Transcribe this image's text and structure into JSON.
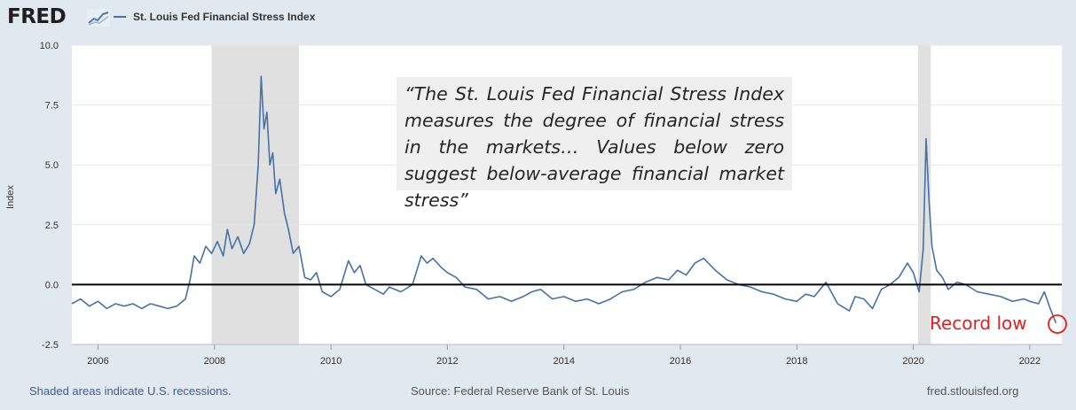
{
  "header": {
    "logo_text": "FRED",
    "legend_label": "St. Louis Fed Financial Stress Index"
  },
  "colors": {
    "series": "#4572a7",
    "recession": "#e0e0e0",
    "annotation": "#e32020"
  },
  "annotation": {
    "quote": "“The St. Louis Fed Financial Stress Index measures the degree of financial stress in the markets… Values below zero suggest below-average financial market stress”",
    "record_label": "Record low"
  },
  "footer": {
    "left": "Shaded areas indicate U.S. recessions.",
    "center": "Source: Federal Reserve Bank of St. Louis",
    "right": "fred.stlouisfed.org"
  },
  "chart_data": {
    "type": "line",
    "ylabel": "Index",
    "ylim": [
      -2.5,
      10
    ],
    "xlim": [
      2005.55,
      2022.55
    ],
    "yticks": [
      "10.0",
      "7.5",
      "5.0",
      "2.5",
      "0.0",
      "-2.5"
    ],
    "xticks": [
      "2006",
      "2008",
      "2010",
      "2012",
      "2014",
      "2016",
      "2018",
      "2020",
      "2022"
    ],
    "recessions": [
      [
        2007.95,
        2009.45
      ],
      [
        2020.08,
        2020.3
      ]
    ],
    "zero_line": true,
    "series": [
      {
        "name": "St. Louis Fed Financial Stress Index",
        "x": [
          2005.55,
          2005.7,
          2005.85,
          2006.0,
          2006.15,
          2006.3,
          2006.45,
          2006.6,
          2006.75,
          2006.9,
          2007.05,
          2007.2,
          2007.35,
          2007.5,
          2007.58,
          2007.65,
          2007.75,
          2007.85,
          2007.95,
          2008.05,
          2008.15,
          2008.22,
          2008.3,
          2008.4,
          2008.5,
          2008.6,
          2008.68,
          2008.75,
          2008.8,
          2008.85,
          2008.9,
          2008.95,
          2009.0,
          2009.05,
          2009.12,
          2009.2,
          2009.27,
          2009.35,
          2009.45,
          2009.55,
          2009.65,
          2009.75,
          2009.85,
          2010.0,
          2010.15,
          2010.3,
          2010.4,
          2010.5,
          2010.6,
          2010.75,
          2010.9,
          2011.0,
          2011.2,
          2011.4,
          2011.55,
          2011.65,
          2011.75,
          2011.9,
          2012.0,
          2012.15,
          2012.3,
          2012.5,
          2012.7,
          2012.9,
          2013.1,
          2013.3,
          2013.45,
          2013.6,
          2013.8,
          2014.0,
          2014.2,
          2014.4,
          2014.6,
          2014.8,
          2015.0,
          2015.2,
          2015.4,
          2015.6,
          2015.8,
          2015.95,
          2016.1,
          2016.25,
          2016.4,
          2016.6,
          2016.8,
          2017.0,
          2017.2,
          2017.4,
          2017.6,
          2017.8,
          2018.0,
          2018.15,
          2018.3,
          2018.5,
          2018.7,
          2018.9,
          2019.0,
          2019.15,
          2019.3,
          2019.45,
          2019.6,
          2019.75,
          2019.9,
          2020.0,
          2020.1,
          2020.17,
          2020.22,
          2020.27,
          2020.32,
          2020.4,
          2020.5,
          2020.6,
          2020.75,
          2020.9,
          2021.1,
          2021.3,
          2021.5,
          2021.7,
          2021.9,
          2022.0,
          2022.15,
          2022.25,
          2022.35,
          2022.45
        ],
        "y": [
          -0.8,
          -0.6,
          -0.9,
          -0.7,
          -1.0,
          -0.8,
          -0.9,
          -0.8,
          -1.0,
          -0.8,
          -0.9,
          -1.0,
          -0.9,
          -0.6,
          0.2,
          1.2,
          0.9,
          1.6,
          1.3,
          1.8,
          1.2,
          2.3,
          1.5,
          2.0,
          1.3,
          1.7,
          2.5,
          5.0,
          8.7,
          6.5,
          7.2,
          5.0,
          5.5,
          3.8,
          4.4,
          3.0,
          2.3,
          1.3,
          1.6,
          0.3,
          0.2,
          0.5,
          -0.3,
          -0.5,
          -0.2,
          1.0,
          0.5,
          0.8,
          0.0,
          -0.2,
          -0.4,
          -0.1,
          -0.3,
          0.0,
          1.2,
          0.9,
          1.1,
          0.7,
          0.5,
          0.3,
          -0.1,
          -0.2,
          -0.6,
          -0.5,
          -0.7,
          -0.5,
          -0.3,
          -0.2,
          -0.6,
          -0.5,
          -0.7,
          -0.6,
          -0.8,
          -0.6,
          -0.3,
          -0.2,
          0.1,
          0.3,
          0.2,
          0.6,
          0.4,
          0.9,
          1.1,
          0.6,
          0.2,
          0.0,
          -0.1,
          -0.3,
          -0.4,
          -0.6,
          -0.7,
          -0.4,
          -0.5,
          0.1,
          -0.8,
          -1.1,
          -0.5,
          -0.6,
          -1.0,
          -0.2,
          0.0,
          0.3,
          0.9,
          0.5,
          -0.3,
          1.5,
          6.1,
          3.5,
          1.6,
          0.6,
          0.3,
          -0.2,
          0.1,
          0.0,
          -0.3,
          -0.4,
          -0.5,
          -0.7,
          -0.6,
          -0.7,
          -0.8,
          -0.3,
          -1.0,
          -1.6
        ]
      }
    ]
  }
}
